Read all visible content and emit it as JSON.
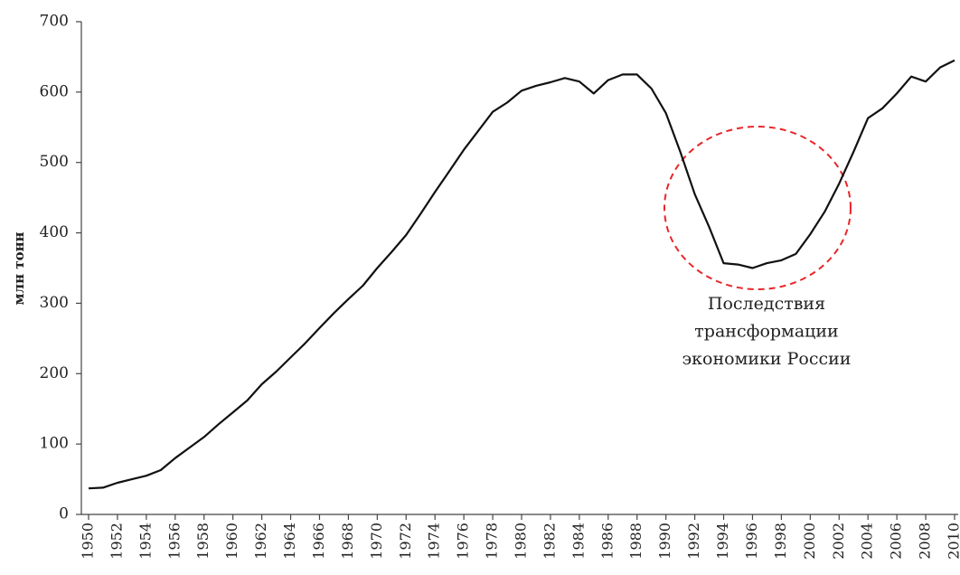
{
  "chart_data": {
    "type": "line",
    "y_label": "млн тонн",
    "annotation": [
      "Последствия",
      "трансформации",
      "экономики России"
    ],
    "x": [
      1950,
      1951,
      1952,
      1953,
      1954,
      1955,
      1956,
      1957,
      1958,
      1959,
      1960,
      1961,
      1962,
      1963,
      1964,
      1965,
      1966,
      1967,
      1968,
      1969,
      1970,
      1971,
      1972,
      1973,
      1974,
      1975,
      1976,
      1977,
      1978,
      1979,
      1980,
      1981,
      1982,
      1983,
      1984,
      1985,
      1986,
      1987,
      1988,
      1989,
      1990,
      1991,
      1992,
      1993,
      1994,
      1995,
      1996,
      1997,
      1998,
      1999,
      2000,
      2001,
      2002,
      2003,
      2004,
      2005,
      2006,
      2007,
      2008,
      2009,
      2010
    ],
    "values": [
      37,
      38,
      45,
      50,
      55,
      63,
      80,
      95,
      110,
      128,
      145,
      162,
      185,
      203,
      223,
      243,
      265,
      286,
      306,
      325,
      350,
      373,
      397,
      427,
      458,
      488,
      518,
      545,
      572,
      585,
      602,
      609,
      614,
      620,
      615,
      598,
      617,
      625,
      625,
      605,
      570,
      515,
      455,
      408,
      357,
      355,
      350,
      357,
      361,
      370,
      398,
      430,
      470,
      515,
      563,
      577,
      598,
      622,
      615,
      635,
      645
    ],
    "color": "#111111",
    "xlim": [
      1950,
      2010
    ],
    "xticks": [
      1950,
      1952,
      1954,
      1956,
      1958,
      1960,
      1962,
      1964,
      1966,
      1968,
      1970,
      1972,
      1974,
      1976,
      1978,
      1980,
      1982,
      1984,
      1986,
      1988,
      1990,
      1992,
      1994,
      1996,
      1998,
      2000,
      2002,
      2004,
      2006,
      2008,
      2010
    ],
    "ylim": [
      0,
      700
    ],
    "yticks": [
      0,
      100,
      200,
      300,
      400,
      500,
      600,
      700
    ],
    "grid": false
  }
}
